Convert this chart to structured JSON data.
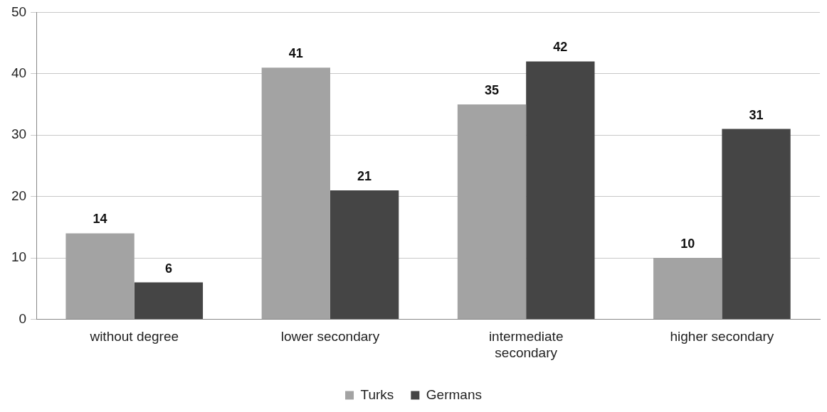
{
  "chart_data": {
    "type": "bar",
    "categories": [
      "without degree",
      "lower secondary",
      "intermediate secondary",
      "higher secondary"
    ],
    "series": [
      {
        "name": "Turks",
        "color": "#a3a3a3",
        "values": [
          14,
          41,
          35,
          10
        ]
      },
      {
        "name": "Germans",
        "color": "#454545",
        "values": [
          6,
          21,
          42,
          31
        ]
      }
    ],
    "ylim": [
      0,
      50
    ],
    "yticks": [
      0,
      10,
      20,
      30,
      40,
      50
    ],
    "grid": "y",
    "legend": "bottom",
    "data_labels": true
  }
}
